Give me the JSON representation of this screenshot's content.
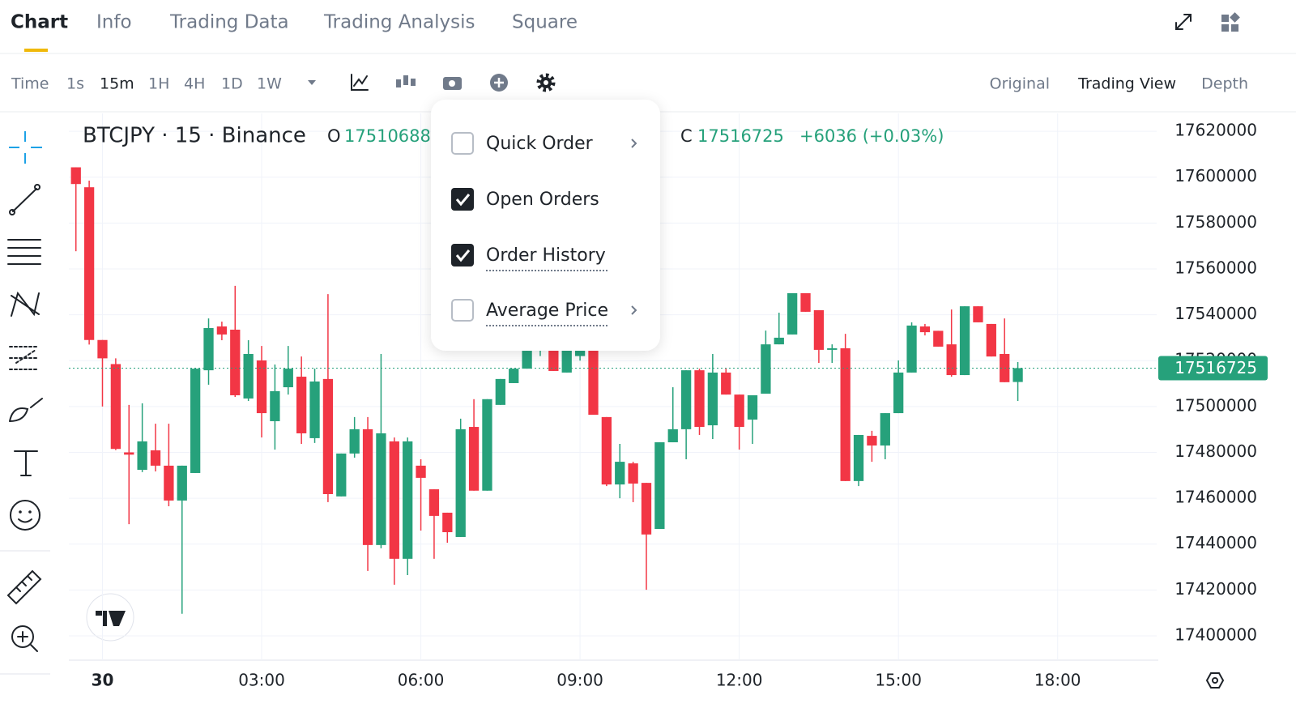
{
  "tabs": [
    "Chart",
    "Info",
    "Trading Data",
    "Trading Analysis",
    "Square"
  ],
  "active_tab": 0,
  "toolbar": {
    "intervals": [
      "Time",
      "1s",
      "15m",
      "1H",
      "4H",
      "1D",
      "1W"
    ],
    "active_interval": 2,
    "views": [
      "Original",
      "Trading View",
      "Depth"
    ],
    "active_view": 1
  },
  "menu": {
    "items": [
      {
        "label": "Quick Order",
        "checked": false,
        "submenu": true
      },
      {
        "label": "Open Orders",
        "checked": true,
        "submenu": false
      },
      {
        "label": "Order History",
        "checked": true,
        "submenu": false
      },
      {
        "label": "Average Price",
        "checked": false,
        "submenu": true
      }
    ]
  },
  "chart_data": {
    "type": "candlestick",
    "title": "BTCJPY · 15 · Binance",
    "legend": {
      "open_label": "O",
      "open": "17510688",
      "close_label": "C",
      "close": "17516725",
      "change": "+6036 (+0.03%)"
    },
    "up_color": "#26a17b",
    "down_color": "#f23645",
    "x": [
      -30,
      -15,
      0,
      15,
      30,
      45,
      60,
      75,
      90,
      105,
      120,
      135,
      150,
      165,
      180,
      195,
      210,
      225,
      240,
      255,
      270,
      285,
      300,
      315,
      330,
      345,
      360,
      375,
      390,
      405,
      420,
      435,
      450,
      465,
      480,
      495,
      510,
      525,
      540,
      555,
      570,
      585,
      600,
      615,
      630,
      645,
      660,
      675,
      690,
      705,
      720,
      735,
      750,
      765,
      780,
      795,
      810,
      825,
      840,
      855,
      870,
      885,
      900,
      915,
      930,
      945,
      960,
      975,
      990,
      1005,
      1020,
      1035
    ],
    "open": [
      17604300,
      17595600,
      17529000,
      17518500,
      17480000,
      17472400,
      17480900,
      17474200,
      17459000,
      17471000,
      17515800,
      17534900,
      17533500,
      17503500,
      17520100,
      17493600,
      17508400,
      17513000,
      17486200,
      17512000,
      17460800,
      17479500,
      17490100,
      17439600,
      17484800,
      17433600,
      17474200,
      17463900,
      17453700,
      17443100,
      17491100,
      17463300,
      17500700,
      17510200,
      17516500,
      17524300,
      17529000,
      17514800,
      17522000,
      17529000,
      17495400,
      17466000,
      17475200,
      17466700,
      17446600,
      17484400,
      17490100,
      17515800,
      17491800,
      17514800,
      17505200,
      17494300,
      17505600,
      17527100,
      17531400,
      17549400,
      17542000,
      17524700,
      17525400,
      17467500,
      17487200,
      17483000,
      17497100,
      17514800,
      17534900,
      17533000,
      17527100,
      17513700,
      17543700,
      17536000,
      17522900,
      17510688
    ],
    "high": [
      17604300,
      17598500,
      17529000,
      17521000,
      17500700,
      17501400,
      17492500,
      17492500,
      17474200,
      17516500,
      17538400,
      17537000,
      17552600,
      17528900,
      17526400,
      17518300,
      17526400,
      17521800,
      17516500,
      17549000,
      17479500,
      17495400,
      17495400,
      17522900,
      17486500,
      17486500,
      17477000,
      17463900,
      17453700,
      17494700,
      17503200,
      17503200,
      17512000,
      17516500,
      17530000,
      17533000,
      17531000,
      17531000,
      17529000,
      17531000,
      17495400,
      17483700,
      17475900,
      17466700,
      17484400,
      17508400,
      17515800,
      17516500,
      17522900,
      17516500,
      17505200,
      17504900,
      17533100,
      17540900,
      17549400,
      17549400,
      17542000,
      17527100,
      17531700,
      17487600,
      17489400,
      17497100,
      17520100,
      17536700,
      17536000,
      17533000,
      17542300,
      17543700,
      17543700,
      17536000,
      17538400,
      17519400
    ],
    "low": [
      17567700,
      17527000,
      17500000,
      17481000,
      17448700,
      17471400,
      17471700,
      17456500,
      17409600,
      17471000,
      17509500,
      17528900,
      17504200,
      17502400,
      17486500,
      17481200,
      17505200,
      17483700,
      17484100,
      17458300,
      17460800,
      17477700,
      17428300,
      17438200,
      17422300,
      17426500,
      17445900,
      17433600,
      17440600,
      17443100,
      17463300,
      17463300,
      17500700,
      17510200,
      17516500,
      17522000,
      17515500,
      17514800,
      17520000,
      17496400,
      17465300,
      17460000,
      17458300,
      17420100,
      17446600,
      17484400,
      17477000,
      17487600,
      17485800,
      17505200,
      17481200,
      17483700,
      17505600,
      17527100,
      17531400,
      17541300,
      17519000,
      17519000,
      17467500,
      17465300,
      17475900,
      17477000,
      17497100,
      17514800,
      17531000,
      17526100,
      17513000,
      17513700,
      17536700,
      17521800,
      17510600,
      17502400
    ],
    "close": [
      17597000,
      17529000,
      17521000,
      17481500,
      17479000,
      17484800,
      17474200,
      17459000,
      17474200,
      17516500,
      17534200,
      17531400,
      17504900,
      17522900,
      17497100,
      17506700,
      17516500,
      17488300,
      17510900,
      17461800,
      17479500,
      17490100,
      17439600,
      17488300,
      17433600,
      17484800,
      17468900,
      17452300,
      17445200,
      17490100,
      17463300,
      17503200,
      17512000,
      17516500,
      17524300,
      17530000,
      17515500,
      17528000,
      17527000,
      17496400,
      17466000,
      17475900,
      17466400,
      17444200,
      17484400,
      17490100,
      17515800,
      17491100,
      17514800,
      17505200,
      17491100,
      17504900,
      17527100,
      17530000,
      17549400,
      17541300,
      17524700,
      17525400,
      17467500,
      17487600,
      17483000,
      17497100,
      17514800,
      17535300,
      17532400,
      17526100,
      17513700,
      17543700,
      17536700,
      17521800,
      17510600,
      17516725
    ],
    "last_price": {
      "value": 17516725,
      "label": "17516725"
    },
    "xlim": [
      -38,
      1192
    ],
    "xticks": [
      {
        "value": 0,
        "label": "30"
      },
      {
        "value": 180,
        "label": "03:00"
      },
      {
        "value": 360,
        "label": "06:00"
      },
      {
        "value": 540,
        "label": "09:00"
      },
      {
        "value": 720,
        "label": "12:00"
      },
      {
        "value": 900,
        "label": "15:00"
      },
      {
        "value": 1080,
        "label": "18:00"
      }
    ],
    "ylim": [
      17389400,
      17627800
    ],
    "yticks": [
      17400000,
      17420000,
      17440000,
      17460000,
      17480000,
      17500000,
      17520000,
      17540000,
      17560000,
      17580000,
      17600000,
      17620000
    ],
    "grid": true
  }
}
